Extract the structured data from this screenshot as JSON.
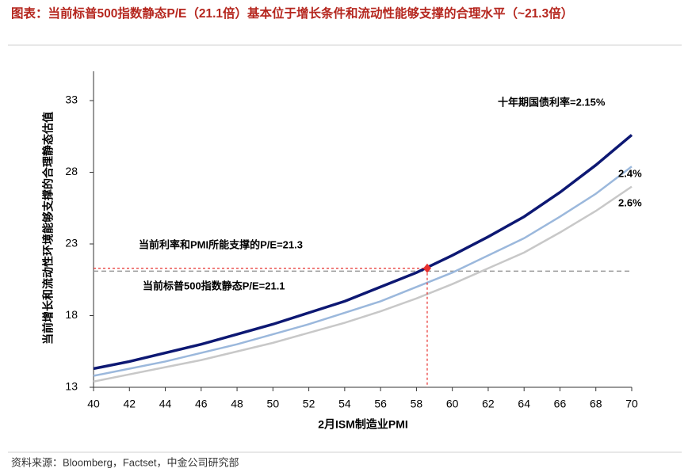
{
  "chart_data": {
    "type": "line",
    "title": "图表：当前标普500指数静态P/E（21.1倍）基本位于增长条件和流动性能够支撑的合理水平（~21.3倍）",
    "xlabel": "2月ISM制造业PMI",
    "ylabel": "当前增长和流动性环境能够支撑的合理静态估值",
    "x": [
      40,
      42,
      44,
      46,
      48,
      50,
      52,
      54,
      56,
      58,
      60,
      62,
      64,
      66,
      68,
      70
    ],
    "series": [
      {
        "name": "十年期国债利率=2.15%",
        "color": "#0d1873",
        "values": [
          14.3,
          14.8,
          15.4,
          16.0,
          16.7,
          17.4,
          18.2,
          19.0,
          20.0,
          21.0,
          22.2,
          23.5,
          24.9,
          26.6,
          28.5,
          30.6
        ]
      },
      {
        "name": "2.4%",
        "color": "#9bb8dc",
        "values": [
          13.8,
          14.3,
          14.8,
          15.4,
          16.0,
          16.7,
          17.4,
          18.2,
          19.0,
          20.0,
          21.0,
          22.2,
          23.4,
          24.9,
          26.5,
          28.4
        ]
      },
      {
        "name": "2.6%",
        "color": "#c8c8c8",
        "values": [
          13.4,
          13.9,
          14.4,
          14.9,
          15.5,
          16.1,
          16.8,
          17.5,
          18.3,
          19.2,
          20.2,
          21.3,
          22.4,
          23.8,
          25.3,
          27.0
        ]
      }
    ],
    "reference_lines": [
      {
        "label": "当前利率和PMI所能支撑的P/E=21.3",
        "x": 58.6,
        "y": 21.3,
        "color": "#e8312f"
      },
      {
        "label": "当前标普500指数静态P/E=21.1",
        "y": 21.1,
        "color": "#999999"
      }
    ],
    "xlim": [
      40,
      70
    ],
    "xticks": [
      40,
      42,
      44,
      46,
      48,
      50,
      52,
      54,
      56,
      58,
      60,
      62,
      64,
      66,
      68,
      70
    ],
    "ylim": [
      13,
      35
    ],
    "yticks": [
      13,
      18,
      23,
      28,
      33
    ],
    "source": "资料来源：Bloomberg，Factset，中金公司研究部"
  }
}
